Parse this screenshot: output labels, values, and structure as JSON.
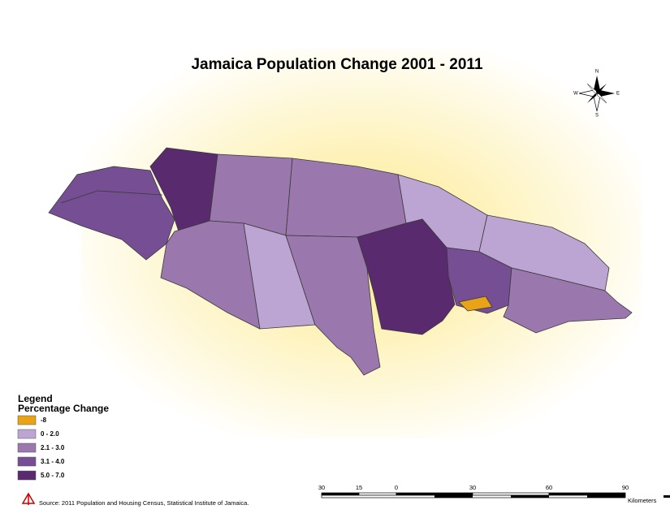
{
  "title": "Jamaica Population Change 2001 - 2011",
  "compass": {
    "n": "N",
    "s": "S",
    "e": "E",
    "w": "W"
  },
  "legend": {
    "title": "Legend",
    "subtitle": "Percentage Change",
    "classes": [
      {
        "label": "-8",
        "color": "#e8a317"
      },
      {
        "label": "0 - 2.0",
        "color": "#bca5d2"
      },
      {
        "label": "2.1 - 3.0",
        "color": "#9a78ae"
      },
      {
        "label": "3.1 - 4.0",
        "color": "#764e93"
      },
      {
        "label": "5.0 - 7.0",
        "color": "#5a2a6e"
      }
    ]
  },
  "scale_bar": {
    "labels": [
      "30",
      "15",
      "0",
      "30",
      "60",
      "90"
    ],
    "unit": "Kilometers"
  },
  "source": "Source: 2011 Population and Housing Census, Statistical Institute of Jamaica."
}
